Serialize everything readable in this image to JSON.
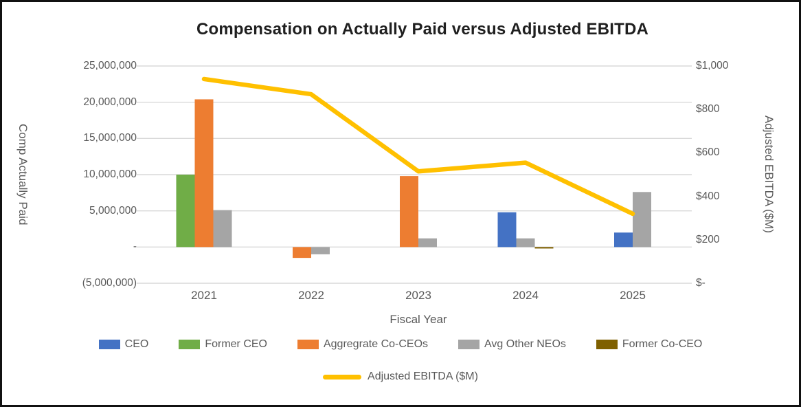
{
  "window": {
    "background": "#FFFFFF",
    "border_color": "#111111"
  },
  "chart_data": {
    "type": "combo",
    "subtype": "clustered column + line, dual y-axis",
    "title": "Compensation on Actually Paid versus Adjusted EBITDA",
    "categories": [
      "2021",
      "2022",
      "2023",
      "2024",
      "2025"
    ],
    "bar_series": [
      {
        "name": "CEO",
        "color": "#4472C4",
        "values": [
          null,
          null,
          null,
          4800000,
          2000000
        ]
      },
      {
        "name": "Former CEO",
        "color": "#70AD47",
        "values": [
          10000000,
          null,
          null,
          null,
          null
        ]
      },
      {
        "name": "Aggregrate Co-CEOs",
        "color": "#ED7D31",
        "values": [
          20400000,
          -1500000,
          9800000,
          null,
          null
        ]
      },
      {
        "name": "Avg Other NEOs",
        "color": "#A5A5A5",
        "values": [
          5100000,
          -1000000,
          1200000,
          1200000,
          7600000
        ]
      },
      {
        "name": "Former Co-CEO",
        "color": "#7F6000",
        "values": [
          null,
          null,
          null,
          -200000,
          null
        ]
      }
    ],
    "line_series": {
      "name": "Adjusted EBITDA ($M)",
      "color": "#FFC000",
      "values": [
        940,
        870,
        515,
        555,
        320
      ]
    },
    "left_axis": {
      "title": "Comp Actually Paid",
      "min": -5000000,
      "max": 25000000,
      "tick_labels": [
        "25,000,000",
        "20,000,000",
        "15,000,000",
        "10,000,000",
        "5,000,000",
        "-",
        "(5,000,000)"
      ]
    },
    "right_axis": {
      "title": "Adjusted EBITDA ($M)",
      "min": 0,
      "max": 1000,
      "tick_labels": [
        "$1,000",
        "$800",
        "$600",
        "$400",
        "$200",
        "$-"
      ]
    },
    "x_axis": {
      "title": "Fiscal Year"
    },
    "legend": {
      "position": "bottom",
      "rows": [
        [
          "CEO",
          "Former CEO",
          "Aggregrate Co-CEOs",
          "Avg Other NEOs",
          "Former Co-CEO"
        ],
        [
          "Adjusted EBITDA ($M)"
        ]
      ]
    },
    "grid": true,
    "colors": {
      "gridline": "#D9D9D9",
      "axis_text": "#595959",
      "title_text": "#1F1F1F"
    }
  }
}
